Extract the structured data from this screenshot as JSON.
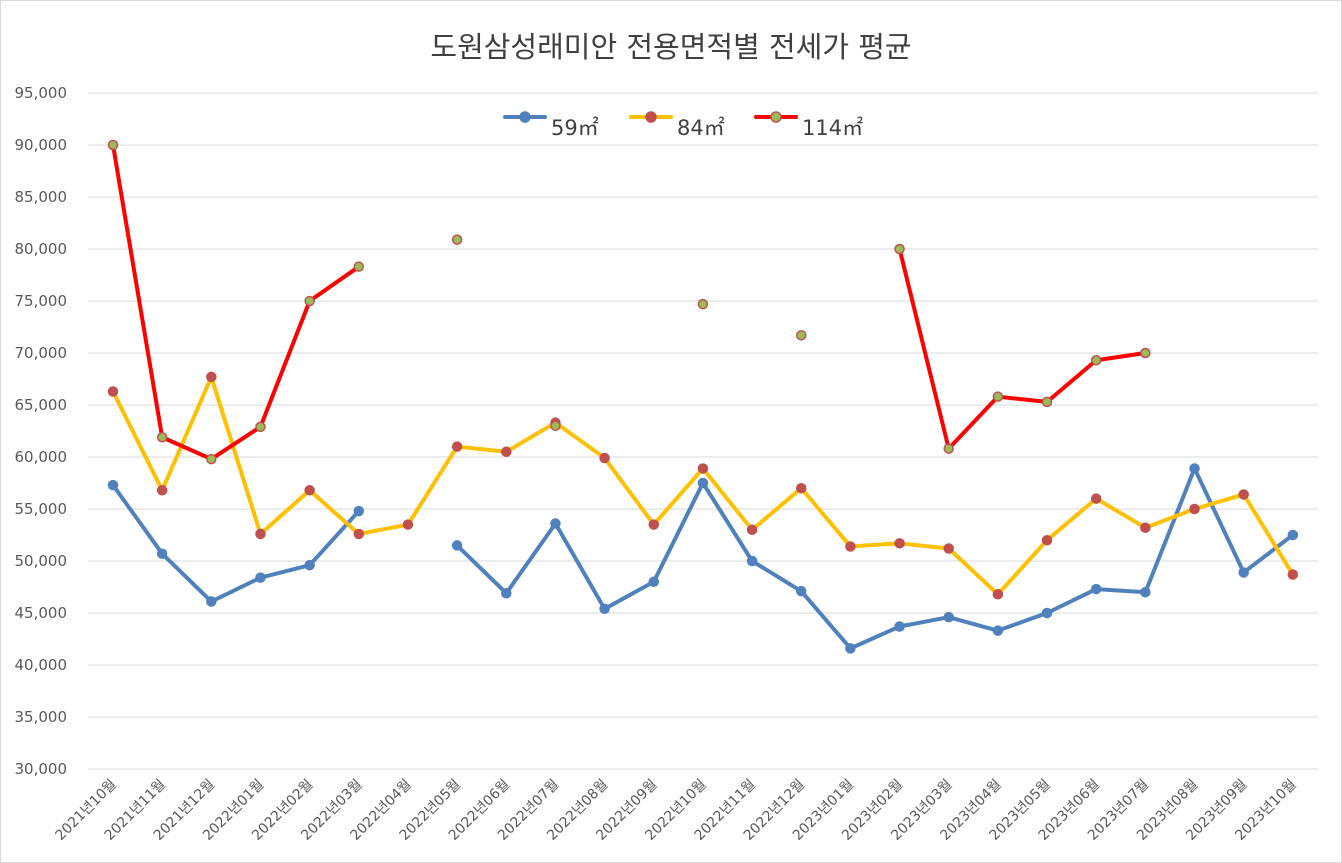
{
  "chart_data": {
    "type": "line",
    "title": "도원삼성래미안 전용면적별 전세가 평균",
    "xlabel": "",
    "ylabel": "",
    "ylim": [
      30000,
      95000
    ],
    "ytick_step": 5000,
    "ytick_labels": [
      "30,000",
      "35,000",
      "40,000",
      "45,000",
      "50,000",
      "55,000",
      "60,000",
      "65,000",
      "70,000",
      "75,000",
      "80,000",
      "85,000",
      "90,000",
      "95,000"
    ],
    "grid": true,
    "legend_position": "top-center",
    "categories": [
      "2021년10월",
      "2021년11월",
      "2021년12월",
      "2022년01월",
      "2022년02월",
      "2022년03월",
      "2022년04월",
      "2022년05월",
      "2022년06월",
      "2022년07월",
      "2022년08월",
      "2022년09월",
      "2022년10월",
      "2022년11월",
      "2022년12월",
      "2023년01월",
      "2023년02월",
      "2023년03월",
      "2023년04월",
      "2023년05월",
      "2023년06월",
      "2023년07월",
      "2023년08월",
      "2023년09월",
      "2023년10월"
    ],
    "series": [
      {
        "name": "59㎡",
        "color": "#4f81bd",
        "marker_fill": "#4f81bd",
        "marker_stroke": "#4f81bd",
        "values": [
          57300,
          50700,
          46100,
          48400,
          49600,
          54800,
          null,
          51500,
          46900,
          53600,
          45400,
          48000,
          57500,
          50000,
          47100,
          41600,
          43700,
          44600,
          43300,
          45000,
          47300,
          47000,
          58900,
          48900,
          52500
        ]
      },
      {
        "name": "84㎡",
        "color": "#ffc000",
        "marker_fill": "#c0504d",
        "marker_stroke": "#c0504d",
        "values": [
          66300,
          56800,
          67700,
          52600,
          56800,
          52600,
          53500,
          61000,
          60500,
          63300,
          59900,
          53500,
          58900,
          53000,
          57000,
          51400,
          51700,
          51200,
          46800,
          52000,
          56000,
          53200,
          55000,
          56400,
          48700
        ]
      },
      {
        "name": "114㎡",
        "color": "#ff0000",
        "marker_fill": "#9bbb59",
        "marker_stroke": "#c0504d",
        "values": [
          90000,
          61900,
          59800,
          62900,
          75000,
          78300,
          null,
          80900,
          null,
          63000,
          null,
          null,
          74700,
          null,
          71700,
          null,
          80000,
          60800,
          65800,
          65300,
          69300,
          70000,
          null,
          null,
          null
        ]
      }
    ]
  }
}
